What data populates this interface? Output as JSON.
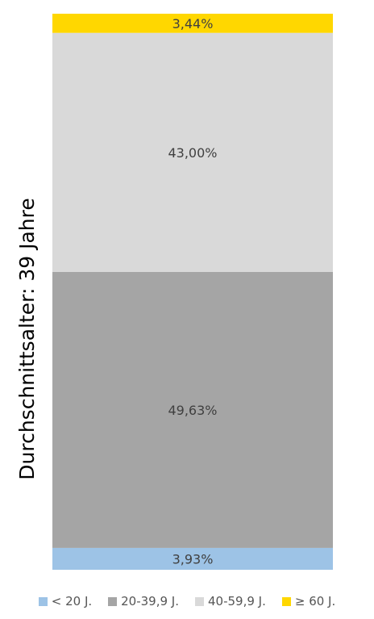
{
  "chart_data": {
    "type": "bar",
    "stacked": true,
    "percent_labels": true,
    "categories": [
      ""
    ],
    "ylabel": "Durchschnittsalter: 39 Jahre",
    "ylim": [
      0,
      100
    ],
    "legend_position": "bottom",
    "series": [
      {
        "name": "< 20 J.",
        "values": [
          3.93
        ],
        "label": "3,93%",
        "color": "#9dc3e6"
      },
      {
        "name": "20-39,9 J.",
        "values": [
          49.63
        ],
        "label": "49,63%",
        "color": "#a5a5a5"
      },
      {
        "name": "40-59,9 J.",
        "values": [
          43.0
        ],
        "label": "43,00%",
        "color": "#d9d9d9"
      },
      {
        "name": "≥ 60 J.",
        "values": [
          3.44
        ],
        "label": "3,44%",
        "color": "#ffd700"
      }
    ]
  }
}
